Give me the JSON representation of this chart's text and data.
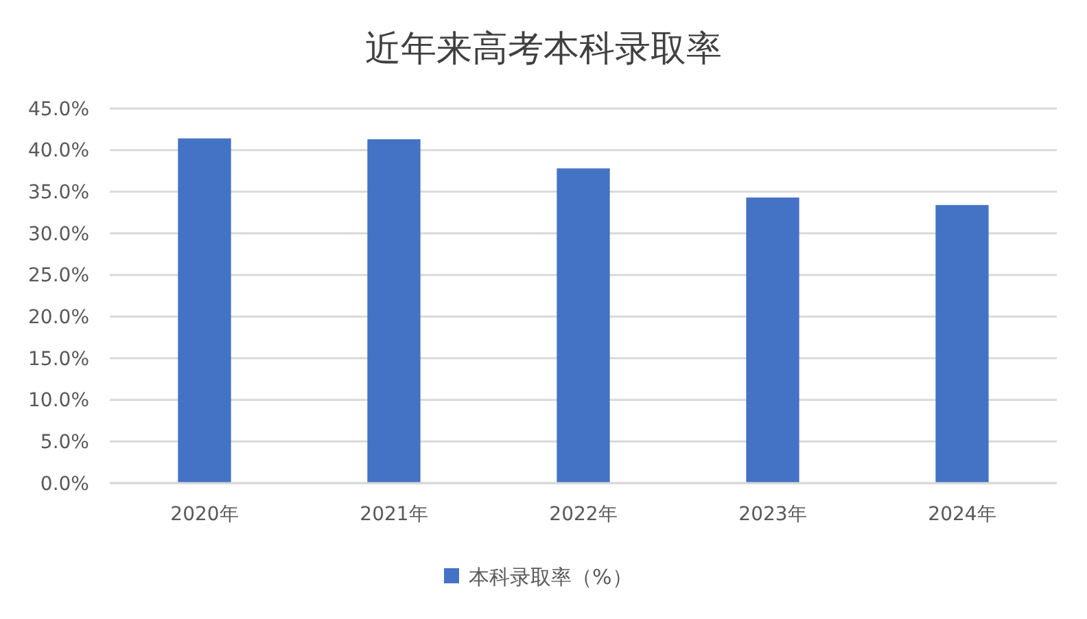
{
  "chart_data": {
    "type": "bar",
    "title": "近年来高考本科录取率",
    "categories": [
      "2020年",
      "2021年",
      "2022年",
      "2023年",
      "2024年"
    ],
    "series": [
      {
        "name": "本科录取率（%）",
        "color": "#4472c4",
        "values": [
          41.4,
          41.3,
          37.8,
          34.3,
          33.4
        ]
      }
    ],
    "ylim": [
      0,
      45
    ],
    "yticks": [
      {
        "value": 0,
        "label": "0.0%"
      },
      {
        "value": 5,
        "label": "5.0%"
      },
      {
        "value": 10,
        "label": "10.0%"
      },
      {
        "value": 15,
        "label": "15.0%"
      },
      {
        "value": 20,
        "label": "20.0%"
      },
      {
        "value": 25,
        "label": "25.0%"
      },
      {
        "value": 30,
        "label": "30.0%"
      },
      {
        "value": 35,
        "label": "35.0%"
      },
      {
        "value": 40,
        "label": "40.0%"
      },
      {
        "value": 45,
        "label": "45.0%"
      }
    ],
    "grid": "y",
    "legend": "bottom"
  }
}
